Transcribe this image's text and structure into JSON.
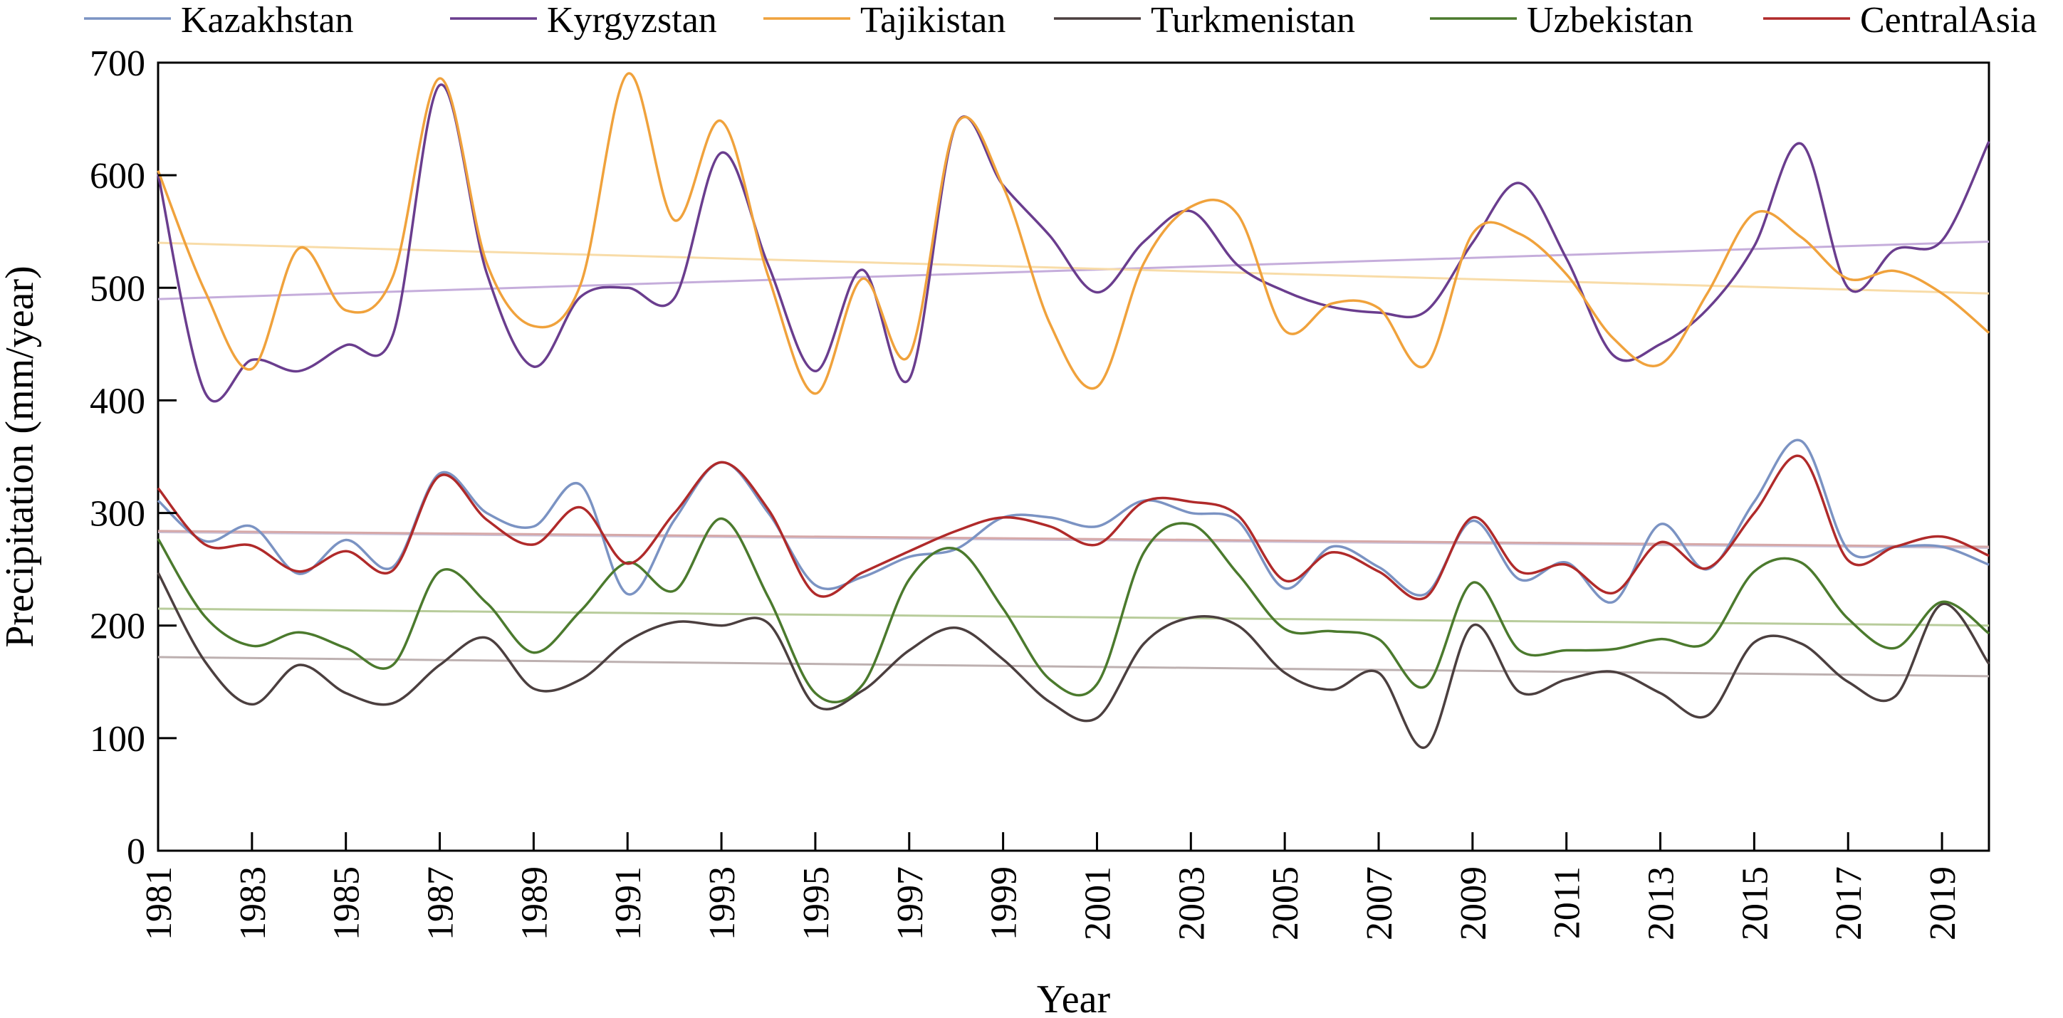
{
  "chart_data": {
    "type": "line",
    "xlabel": "Year",
    "ylabel": "Precipitation (mm/year)",
    "xlim": [
      1981,
      2020
    ],
    "ylim": [
      0,
      700
    ],
    "x_ticks": [
      "1981",
      "1983",
      "1985",
      "1987",
      "1989",
      "1991",
      "1993",
      "1995",
      "1997",
      "1999",
      "2001",
      "2003",
      "2005",
      "2007",
      "2009",
      "2011",
      "2013",
      "2015",
      "2017",
      "2019"
    ],
    "y_ticks": [
      "0",
      "100",
      "200",
      "300",
      "400",
      "500",
      "600",
      "700"
    ],
    "grid": false,
    "legend_position": "top",
    "x": [
      1981,
      1982,
      1983,
      1984,
      1985,
      1986,
      1987,
      1988,
      1989,
      1990,
      1991,
      1992,
      1993,
      1994,
      1995,
      1996,
      1997,
      1998,
      1999,
      2000,
      2001,
      2002,
      2003,
      2004,
      2005,
      2006,
      2007,
      2008,
      2009,
      2010,
      2011,
      2012,
      2013,
      2014,
      2015,
      2016,
      2017,
      2018,
      2019,
      2020
    ],
    "series": [
      {
        "name": "Kazakhstan",
        "color": "#7b93c3",
        "trend_color": "#c9c2d9",
        "values": [
          311,
          275,
          288,
          246,
          276,
          252,
          335,
          300,
          288,
          325,
          228,
          294,
          345,
          300,
          236,
          243,
          261,
          268,
          296,
          296,
          288,
          311,
          300,
          293,
          233,
          270,
          252,
          228,
          293,
          241,
          256,
          221,
          290,
          250,
          310,
          364,
          267,
          270,
          270,
          254
        ],
        "trend": [
          283,
          269
        ]
      },
      {
        "name": "Kyrgyzstan",
        "color": "#6a3d8e",
        "trend_color": "#c5addb",
        "values": [
          601,
          407,
          436,
          426,
          449,
          458,
          680,
          513,
          430,
          492,
          500,
          491,
          620,
          520,
          426,
          516,
          419,
          645,
          591,
          546,
          496,
          541,
          568,
          520,
          497,
          483,
          478,
          479,
          540,
          593,
          526,
          440,
          450,
          481,
          537,
          628,
          500,
          534,
          542,
          630
        ],
        "trend": [
          490,
          541
        ]
      },
      {
        "name": "Tajikistan",
        "color": "#f0a23c",
        "trend_color": "#f8dca8",
        "values": [
          604,
          497,
          428,
          535,
          480,
          510,
          686,
          522,
          466,
          503,
          690,
          560,
          648,
          510,
          406,
          508,
          440,
          645,
          590,
          468,
          412,
          522,
          572,
          565,
          462,
          486,
          482,
          431,
          548,
          548,
          512,
          455,
          432,
          495,
          566,
          545,
          508,
          515,
          495,
          460
        ],
        "trend": [
          540,
          495
        ]
      },
      {
        "name": "Turkmenistan",
        "color": "#4b3f3f",
        "trend_color": "#bdb0b0",
        "values": [
          247,
          168,
          130,
          165,
          140,
          131,
          165,
          189,
          144,
          152,
          186,
          203,
          200,
          202,
          129,
          142,
          178,
          198,
          170,
          132,
          118,
          184,
          207,
          200,
          158,
          143,
          158,
          92,
          200,
          141,
          152,
          159,
          140,
          120,
          185,
          184,
          150,
          137,
          219,
          166
        ],
        "trend": [
          172,
          155
        ]
      },
      {
        "name": "Uzbekistan",
        "color": "#4b7a2d",
        "trend_color": "#b8cc9b",
        "values": [
          277,
          208,
          182,
          194,
          180,
          165,
          248,
          220,
          176,
          213,
          256,
          231,
          295,
          225,
          140,
          147,
          241,
          268,
          215,
          152,
          148,
          265,
          290,
          246,
          197,
          195,
          188,
          146,
          238,
          178,
          178,
          179,
          188,
          185,
          248,
          256,
          206,
          180,
          221,
          193
        ],
        "trend": [
          215,
          200
        ]
      },
      {
        "name": "CentralAsia",
        "color": "#b02a2a",
        "trend_color": "#d6a8a8",
        "values": [
          322,
          272,
          271,
          248,
          266,
          249,
          333,
          294,
          272,
          305,
          255,
          300,
          345,
          303,
          228,
          247,
          266,
          284,
          296,
          288,
          272,
          310,
          310,
          298,
          240,
          265,
          248,
          225,
          296,
          248,
          254,
          229,
          274,
          251,
          300,
          350,
          258,
          270,
          279,
          262
        ],
        "trend": [
          284,
          270
        ]
      }
    ]
  }
}
